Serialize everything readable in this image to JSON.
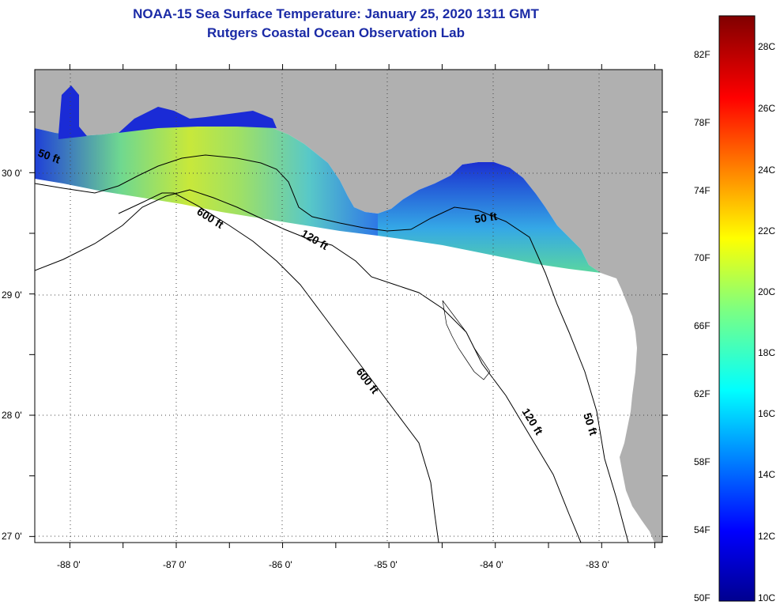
{
  "header": {
    "title": "NOAA-15 Sea Surface Temperature:  January 25, 2020 1311 GMT",
    "subtitle": "Rutgers Coastal Ocean Observation Lab"
  },
  "map": {
    "lon_range": [
      -88.33,
      -82.43
    ],
    "lat_range": [
      26.95,
      30.85
    ],
    "lon_ticks": [
      -88,
      -87,
      -86,
      -85,
      -84,
      -83
    ],
    "lon_tick_labels": [
      "-88 0'",
      "-87 0'",
      "-86 0'",
      "-85 0'",
      "-84 0'",
      "-83 0'"
    ],
    "lat_ticks": [
      30,
      29,
      28,
      27
    ],
    "lat_tick_labels": [
      "30 0'",
      "29 0'",
      "28 0'",
      "27 0'"
    ],
    "grid": "dotted",
    "land_color": "#b0b0b0",
    "ocean_no_data_color": "#ffffff"
  },
  "contour_labels": [
    "50 ft",
    "600 ft",
    "120 ft",
    "50 ft",
    "600 ft",
    "120 ft",
    "50 ft"
  ],
  "colorbar": {
    "fahrenheit_labels": [
      "82F",
      "78F",
      "74F",
      "70F",
      "66F",
      "62F",
      "58F",
      "54F",
      "50F"
    ],
    "celsius_labels": [
      "28C",
      "26C",
      "24C",
      "22C",
      "20C",
      "18C",
      "16C",
      "14C",
      "12C",
      "10C"
    ],
    "range_c": [
      10,
      29
    ],
    "colormap": "jet"
  },
  "colors": {
    "title": "#1a2aa6",
    "land": "#b0b0b0"
  }
}
